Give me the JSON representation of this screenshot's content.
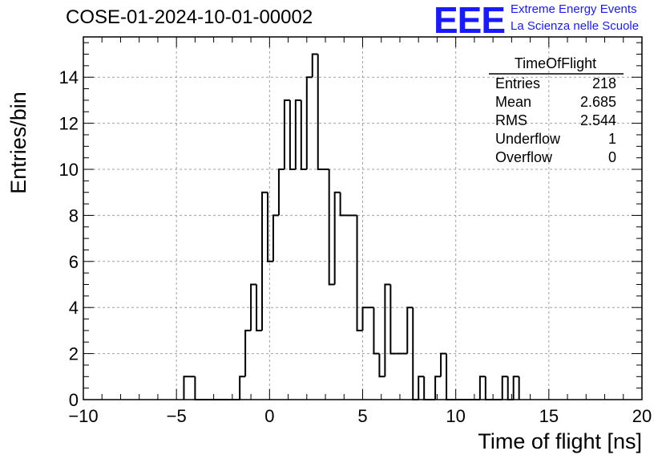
{
  "header": {
    "run_title": "COSE-01-2024-10-01-00002",
    "logo_text": "EEE",
    "logo_line1": "Extreme Energy Events",
    "logo_line2": "La Scienza nelle Scuole"
  },
  "colors": {
    "logo": "#1a1aff",
    "histogram": "#000000",
    "grid": "#a0a0a0"
  },
  "stats_box": {
    "title": "TimeOfFlight",
    "rows": [
      {
        "label": "Entries",
        "value": "218"
      },
      {
        "label": "Mean",
        "value": "2.685"
      },
      {
        "label": "RMS",
        "value": "2.544"
      },
      {
        "label": "Underflow",
        "value": "1"
      },
      {
        "label": "Overflow",
        "value": "0"
      }
    ]
  },
  "chart_data": {
    "type": "histogram",
    "xlabel": "Time of flight [ns]",
    "ylabel": "Entries/bin",
    "xlim": [
      -10,
      20
    ],
    "ylim": [
      0,
      15.75
    ],
    "xticks": [
      -10,
      -5,
      0,
      5,
      10,
      15,
      20
    ],
    "xtick_labels": [
      "−10",
      "−5",
      "0",
      "5",
      "10",
      "15",
      "20"
    ],
    "yticks": [
      0,
      2,
      4,
      6,
      8,
      10,
      12,
      14
    ],
    "grid": true,
    "bin_width": 0.3,
    "bin_starts": [
      -4.6,
      -4.3,
      -4.0,
      -3.7,
      -3.4,
      -3.1,
      -2.8,
      -2.5,
      -2.2,
      -1.9,
      -1.6,
      -1.3,
      -1.0,
      -0.7,
      -0.4,
      -0.1,
      0.2,
      0.5,
      0.8,
      1.1,
      1.4,
      1.7,
      2.0,
      2.3,
      2.6,
      2.9,
      3.2,
      3.5,
      3.8,
      4.1,
      4.4,
      4.7,
      5.0,
      5.3,
      5.6,
      5.9,
      6.2,
      6.5,
      6.8,
      7.1,
      7.4,
      7.7,
      8.0,
      8.3,
      8.6,
      8.9,
      9.2,
      9.5,
      9.8,
      10.1,
      10.4,
      10.7,
      11.0,
      11.3,
      11.6,
      11.9,
      12.2,
      12.5,
      12.8,
      13.1
    ],
    "counts": [
      1,
      1,
      0,
      0,
      0,
      0,
      0,
      0,
      0,
      0,
      1,
      3,
      5,
      3,
      9,
      6,
      8,
      10,
      13,
      10,
      13,
      10,
      14,
      15,
      10,
      10,
      5,
      9,
      8,
      8,
      8,
      3,
      4,
      4,
      2,
      1,
      5,
      2,
      2,
      2,
      4,
      0,
      1,
      0,
      0,
      1,
      2,
      0,
      0,
      0,
      0,
      0,
      0,
      1,
      0,
      0,
      0,
      1,
      0,
      1
    ]
  }
}
